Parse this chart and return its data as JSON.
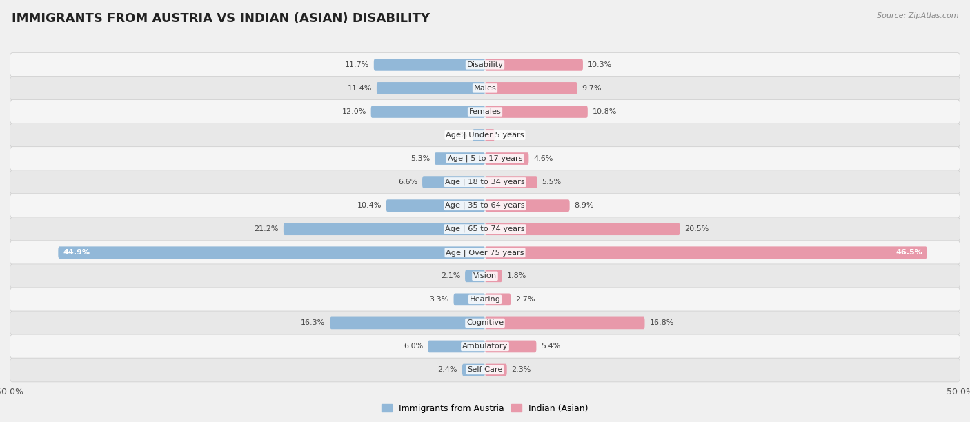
{
  "title": "IMMIGRANTS FROM AUSTRIA VS INDIAN (ASIAN) DISABILITY",
  "source": "Source: ZipAtlas.com",
  "categories": [
    "Disability",
    "Males",
    "Females",
    "Age | Under 5 years",
    "Age | 5 to 17 years",
    "Age | 18 to 34 years",
    "Age | 35 to 64 years",
    "Age | 65 to 74 years",
    "Age | Over 75 years",
    "Vision",
    "Hearing",
    "Cognitive",
    "Ambulatory",
    "Self-Care"
  ],
  "austria_values": [
    11.7,
    11.4,
    12.0,
    1.3,
    5.3,
    6.6,
    10.4,
    21.2,
    44.9,
    2.1,
    3.3,
    16.3,
    6.0,
    2.4
  ],
  "indian_values": [
    10.3,
    9.7,
    10.8,
    1.0,
    4.6,
    5.5,
    8.9,
    20.5,
    46.5,
    1.8,
    2.7,
    16.8,
    5.4,
    2.3
  ],
  "austria_color": "#92b8d8",
  "indian_color": "#e899aa",
  "austria_label": "Immigrants from Austria",
  "indian_label": "Indian (Asian)",
  "xlim": 50.0,
  "row_bg_light": "#f5f5f5",
  "row_bg_dark": "#e8e8e8",
  "title_fontsize": 13,
  "bar_height": 0.52
}
